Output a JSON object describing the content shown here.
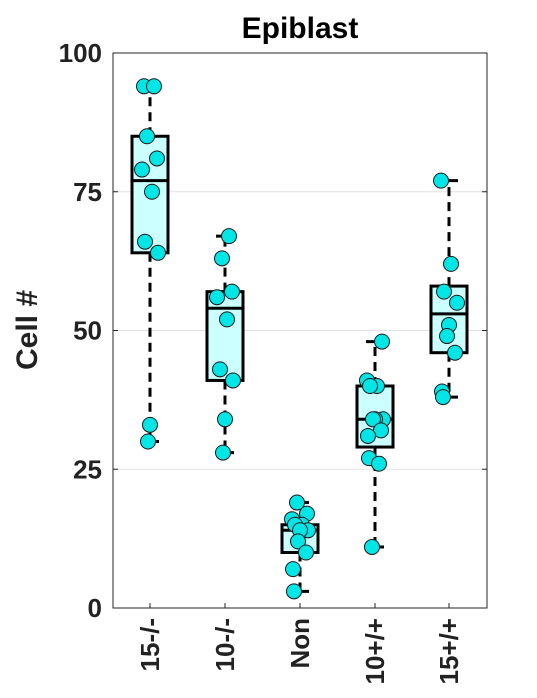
{
  "chart_data": {
    "type": "box",
    "title": "Epiblast",
    "xlabel": "",
    "ylabel": "Cell #",
    "ylim": [
      0,
      100
    ],
    "yticks": [
      0,
      25,
      50,
      75,
      100
    ],
    "grid": "horizontal",
    "categories": [
      "15-/-",
      "10-/-",
      "Non",
      "10+/+",
      "15+/+"
    ],
    "boxes": [
      {
        "category": "15-/-",
        "min": 30,
        "q1": 64,
        "median": 77,
        "q3": 85,
        "max": 94,
        "points": [
          94,
          94,
          85,
          81,
          79,
          75,
          66,
          64,
          33,
          30
        ]
      },
      {
        "category": "10-/-",
        "min": 28,
        "q1": 41,
        "median": 54,
        "q3": 57,
        "max": 67,
        "points": [
          67,
          63,
          57,
          56,
          52,
          43,
          41,
          34,
          28
        ]
      },
      {
        "category": "Non",
        "min": 3,
        "q1": 10,
        "median": 14,
        "q3": 15,
        "max": 19,
        "points": [
          19,
          17,
          16,
          15,
          15,
          14,
          14,
          12,
          10,
          7,
          3
        ]
      },
      {
        "category": "10+/+",
        "min": 11,
        "q1": 29,
        "median": 34,
        "q3": 40,
        "max": 48,
        "points": [
          48,
          41,
          40,
          40,
          34,
          34,
          34,
          32,
          31,
          27,
          26,
          11
        ]
      },
      {
        "category": "15+/+",
        "min": 38,
        "q1": 46,
        "median": 53,
        "q3": 58,
        "max": 77,
        "points": [
          77,
          62,
          57,
          55,
          51,
          49,
          46,
          39,
          38
        ]
      }
    ],
    "colors": {
      "box_fill": "#ccffff",
      "point_fill": "#00e6e6",
      "stroke": "#000000",
      "grid": "#e2e2e2"
    }
  }
}
